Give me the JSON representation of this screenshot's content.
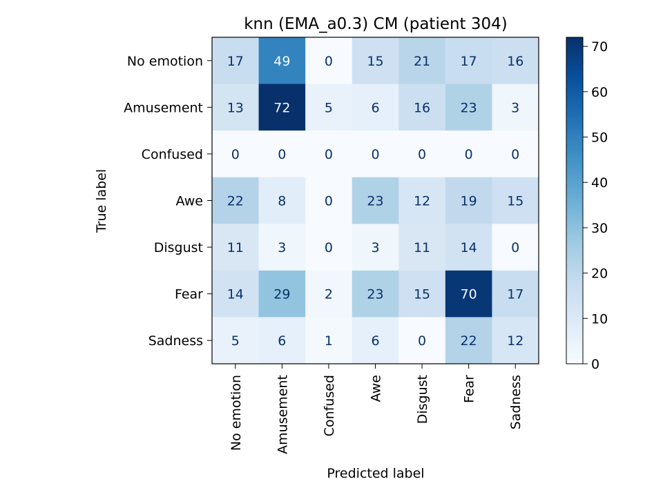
{
  "chart_data": {
    "type": "heatmap",
    "title": "knn (EMA_a0.3) CM (patient 304)",
    "xlabel": "Predicted label",
    "ylabel": "True label",
    "x_categories": [
      "No emotion",
      "Amusement",
      "Confused",
      "Awe",
      "Disgust",
      "Fear",
      "Sadness"
    ],
    "y_categories": [
      "No emotion",
      "Amusement",
      "Confused",
      "Awe",
      "Disgust",
      "Fear",
      "Sadness"
    ],
    "matrix": [
      [
        17,
        49,
        0,
        15,
        21,
        17,
        16
      ],
      [
        13,
        72,
        5,
        6,
        16,
        23,
        3
      ],
      [
        0,
        0,
        0,
        0,
        0,
        0,
        0
      ],
      [
        22,
        8,
        0,
        23,
        12,
        19,
        15
      ],
      [
        11,
        3,
        0,
        3,
        11,
        14,
        0
      ],
      [
        14,
        29,
        2,
        23,
        15,
        70,
        17
      ],
      [
        5,
        6,
        1,
        6,
        0,
        22,
        12
      ]
    ],
    "colormap": "Blues",
    "vmin": 0,
    "vmax": 72,
    "colorbar_ticks": [
      0,
      10,
      20,
      30,
      40,
      50,
      60,
      70
    ],
    "grid": false
  }
}
